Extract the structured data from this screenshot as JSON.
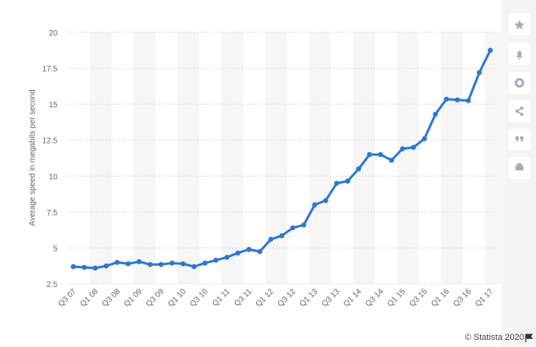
{
  "chart_data": {
    "type": "line",
    "y_label": "Average speed in megabits per second",
    "source": "© Statista 2020",
    "categories": [
      "Q3 07",
      null,
      "Q1 08",
      null,
      "Q3 08",
      null,
      "Q1 09",
      null,
      "Q3 09",
      null,
      "Q1 10",
      null,
      "Q3 10",
      null,
      "Q1 11",
      null,
      "Q3 11",
      null,
      "Q1 12",
      null,
      "Q3 12",
      null,
      "Q1 13",
      null,
      "Q3 13",
      null,
      "Q1 14",
      null,
      "Q3 14",
      null,
      "Q1 15",
      null,
      "Q3 15",
      null,
      "Q1 16",
      null,
      "Q3 16",
      null,
      "Q1 17"
    ],
    "series": [
      {
        "color": "#2f76d2",
        "values": [
          3.7,
          3.65,
          3.6,
          3.75,
          4.0,
          3.9,
          4.05,
          3.85,
          3.85,
          3.95,
          3.9,
          3.7,
          3.95,
          4.15,
          4.35,
          4.65,
          4.9,
          4.75,
          5.6,
          5.85,
          6.4,
          6.6,
          8.0,
          8.3,
          9.5,
          9.65,
          10.5,
          11.5,
          11.5,
          11.1,
          11.9,
          12.0,
          12.6,
          14.3,
          15.35,
          15.3,
          15.25,
          17.2,
          18.75
        ]
      }
    ],
    "ylim": [
      2.5,
      20
    ],
    "yticks": [
      2.5,
      5,
      7.5,
      10,
      12.5,
      15,
      17.5,
      20
    ],
    "grid": true
  }
}
